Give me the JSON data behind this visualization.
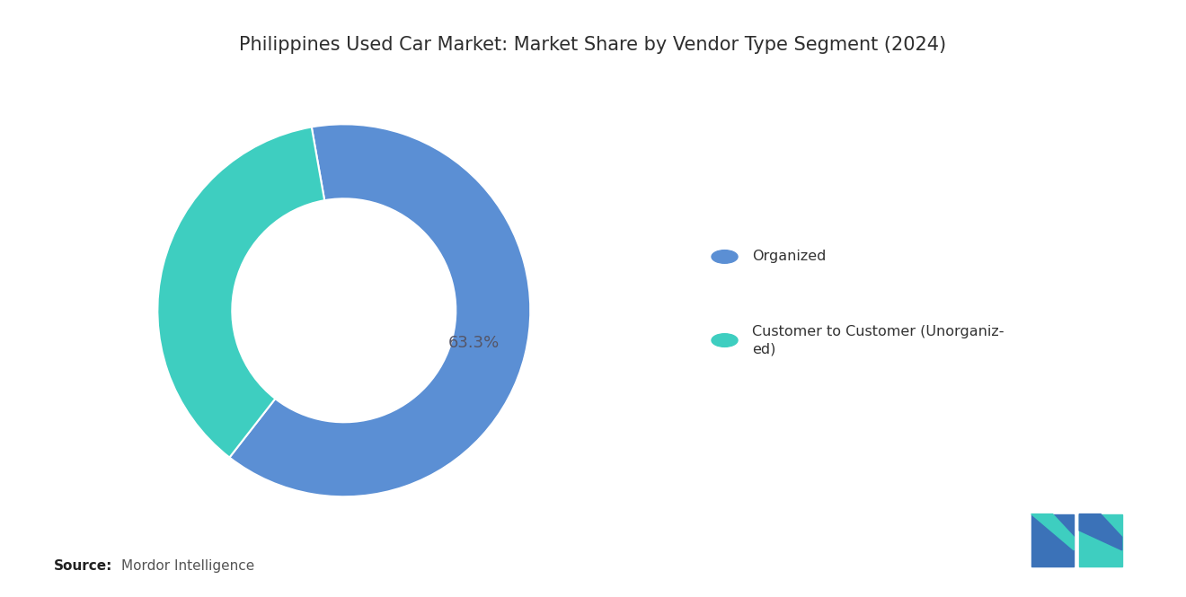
{
  "title": "Philippines Used Car Market: Market Share by Vendor Type Segment (2024)",
  "segments": [
    "Organized",
    "Customer to Customer (Unorganized)"
  ],
  "values": [
    63.3,
    36.7
  ],
  "colors": [
    "#5B8FD4",
    "#3ECEC0"
  ],
  "label_text": "63.3%",
  "label_color": "#555566",
  "source_bold": "Source:",
  "source_normal": "Mordor Intelligence",
  "background_color": "#FFFFFF",
  "legend_label_1": "Organized",
  "legend_label_2": "Customer to Customer (Unorganiz-\ned)",
  "title_fontsize": 15,
  "label_fontsize": 13,
  "startangle": 100,
  "donut_width": 0.4
}
